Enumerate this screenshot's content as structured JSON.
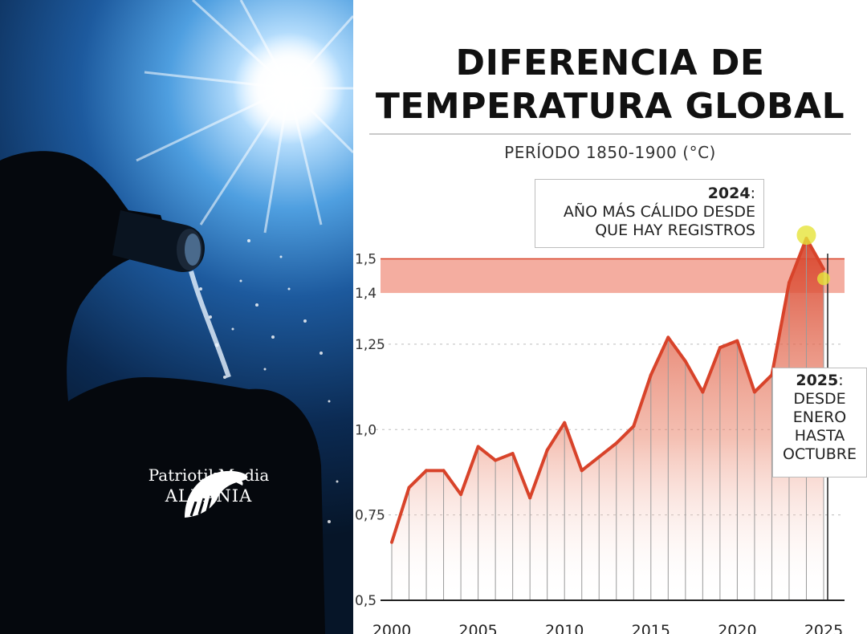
{
  "watermark": {
    "line1": "PatriotikMedia",
    "line2": "ALBANIA"
  },
  "chart": {
    "title_line1": "DIFERENCIA DE",
    "title_line2": "TEMPERATURA GLOBAL",
    "subtitle": "PERÍODO 1850-1900 (°C)"
  },
  "annotations": {
    "a2024": {
      "year": "2024",
      "suffix": ":",
      "line1": "AÑO MÁS CÁLIDO DESDE",
      "line2": "QUE HAY REGISTROS"
    },
    "a2025": {
      "year": "2025",
      "suffix": ":",
      "line1": "DESDE",
      "line2": "ENERO",
      "line3": "HASTA",
      "line4": "OCTUBRE"
    }
  },
  "colors": {
    "line": "#d8432a",
    "band": "#f08a78",
    "highlight": "#e6e33a",
    "title": "#111111",
    "sky": "#1d5a9e"
  },
  "chart_data": {
    "type": "area",
    "x": [
      2000,
      2001,
      2002,
      2003,
      2004,
      2005,
      2006,
      2007,
      2008,
      2009,
      2010,
      2011,
      2012,
      2013,
      2014,
      2015,
      2016,
      2017,
      2018,
      2019,
      2020,
      2021,
      2022,
      2023,
      2024,
      2025
    ],
    "series": [
      {
        "values": [
          0.67,
          0.83,
          0.88,
          0.88,
          0.81,
          0.95,
          0.91,
          0.93,
          0.8,
          0.94,
          1.02,
          0.88,
          0.92,
          0.96,
          1.01,
          1.16,
          1.27,
          1.2,
          1.11,
          1.24,
          1.26,
          1.11,
          1.16,
          1.43,
          1.56,
          1.47
        ]
      }
    ],
    "band": {
      "from": 1.4,
      "to": 1.5
    },
    "yticks": [
      {
        "value": 0.5,
        "label": "0,5"
      },
      {
        "value": 0.75,
        "label": "0,75"
      },
      {
        "value": 1.0,
        "label": "1,0"
      },
      {
        "value": 1.25,
        "label": "1,25"
      },
      {
        "value": 1.4,
        "label": "1,4"
      },
      {
        "value": 1.5,
        "label": "1,5"
      }
    ],
    "xticks": [
      {
        "value": 2000,
        "label": "2000"
      },
      {
        "value": 2005,
        "label": "2005"
      },
      {
        "value": 2010,
        "label": "2010"
      },
      {
        "value": 2015,
        "label": "2015"
      },
      {
        "value": 2020,
        "label": "2020"
      },
      {
        "value": 2025,
        "label": "2025"
      }
    ],
    "highlights": [
      2024,
      2025
    ],
    "ylim": [
      0.5,
      1.6
    ],
    "xlim": [
      2000,
      2025
    ],
    "grid": "dashed"
  }
}
